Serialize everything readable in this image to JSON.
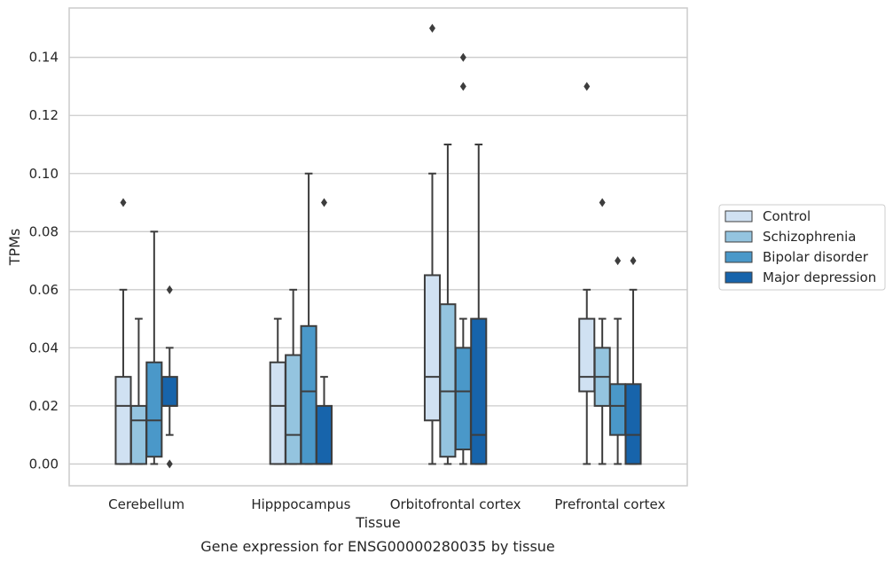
{
  "chart_data": {
    "type": "box",
    "xlabel": "Tissue",
    "ylabel": "TPMs",
    "caption": "Gene expression for ENSG00000280035 by tissue",
    "ylim": [
      -0.0075,
      0.157
    ],
    "yticks": [
      0.0,
      0.02,
      0.04,
      0.06,
      0.08,
      0.1,
      0.12,
      0.14
    ],
    "ytick_labels": [
      "0.00",
      "0.02",
      "0.04",
      "0.06",
      "0.08",
      "0.10",
      "0.12",
      "0.14"
    ],
    "grid": "horizontal",
    "legend_placement": "right",
    "categories": [
      "Cerebellum",
      "Hipppocampus",
      "Orbitofrontal cortex",
      "Prefrontal cortex"
    ],
    "series": [
      {
        "name": "Control",
        "color": "#d0e1f2",
        "boxes": [
          {
            "whislo": 0.0,
            "q1": 0.0,
            "med": 0.02,
            "q3": 0.03,
            "whishi": 0.06,
            "fliers": [
              0.09
            ]
          },
          {
            "whislo": 0.0,
            "q1": 0.0,
            "med": 0.02,
            "q3": 0.035,
            "whishi": 0.05,
            "fliers": []
          },
          {
            "whislo": 0.0,
            "q1": 0.015,
            "med": 0.03,
            "q3": 0.065,
            "whishi": 0.1,
            "fliers": [
              0.15
            ]
          },
          {
            "whislo": 0.0,
            "q1": 0.025,
            "med": 0.03,
            "q3": 0.05,
            "whishi": 0.06,
            "fliers": [
              0.13
            ]
          }
        ]
      },
      {
        "name": "Schizophrenia",
        "color": "#94c4df",
        "boxes": [
          {
            "whislo": 0.0,
            "q1": 0.0,
            "med": 0.015,
            "q3": 0.02,
            "whishi": 0.05,
            "fliers": []
          },
          {
            "whislo": 0.0,
            "q1": 0.0,
            "med": 0.01,
            "q3": 0.0375,
            "whishi": 0.06,
            "fliers": []
          },
          {
            "whislo": 0.0,
            "q1": 0.0025,
            "med": 0.025,
            "q3": 0.055,
            "whishi": 0.11,
            "fliers": []
          },
          {
            "whislo": 0.0,
            "q1": 0.02,
            "med": 0.03,
            "q3": 0.04,
            "whishi": 0.05,
            "fliers": [
              0.09
            ]
          }
        ]
      },
      {
        "name": "Bipolar disorder",
        "color": "#4a98c9",
        "boxes": [
          {
            "whislo": 0.0,
            "q1": 0.0025,
            "med": 0.015,
            "q3": 0.035,
            "whishi": 0.08,
            "fliers": []
          },
          {
            "whislo": 0.0,
            "q1": 0.0,
            "med": 0.025,
            "q3": 0.0475,
            "whishi": 0.1,
            "fliers": []
          },
          {
            "whislo": 0.0,
            "q1": 0.005,
            "med": 0.025,
            "q3": 0.04,
            "whishi": 0.05,
            "fliers": [
              0.13,
              0.14
            ]
          },
          {
            "whislo": 0.0,
            "q1": 0.01,
            "med": 0.02,
            "q3": 0.0275,
            "whishi": 0.05,
            "fliers": [
              0.07
            ]
          }
        ]
      },
      {
        "name": "Major depression",
        "color": "#1764ab",
        "boxes": [
          {
            "whislo": 0.01,
            "q1": 0.02,
            "med": 0.02,
            "q3": 0.03,
            "whishi": 0.04,
            "fliers": [
              0.0,
              0.06
            ]
          },
          {
            "whislo": 0.0,
            "q1": 0.0,
            "med": 0.0,
            "q3": 0.02,
            "whishi": 0.03,
            "fliers": [
              0.09
            ]
          },
          {
            "whislo": 0.0,
            "q1": 0.0,
            "med": 0.01,
            "q3": 0.05,
            "whishi": 0.11,
            "fliers": []
          },
          {
            "whislo": 0.0,
            "q1": 0.0,
            "med": 0.01,
            "q3": 0.0275,
            "whishi": 0.06,
            "fliers": [
              0.07
            ]
          }
        ]
      }
    ]
  }
}
